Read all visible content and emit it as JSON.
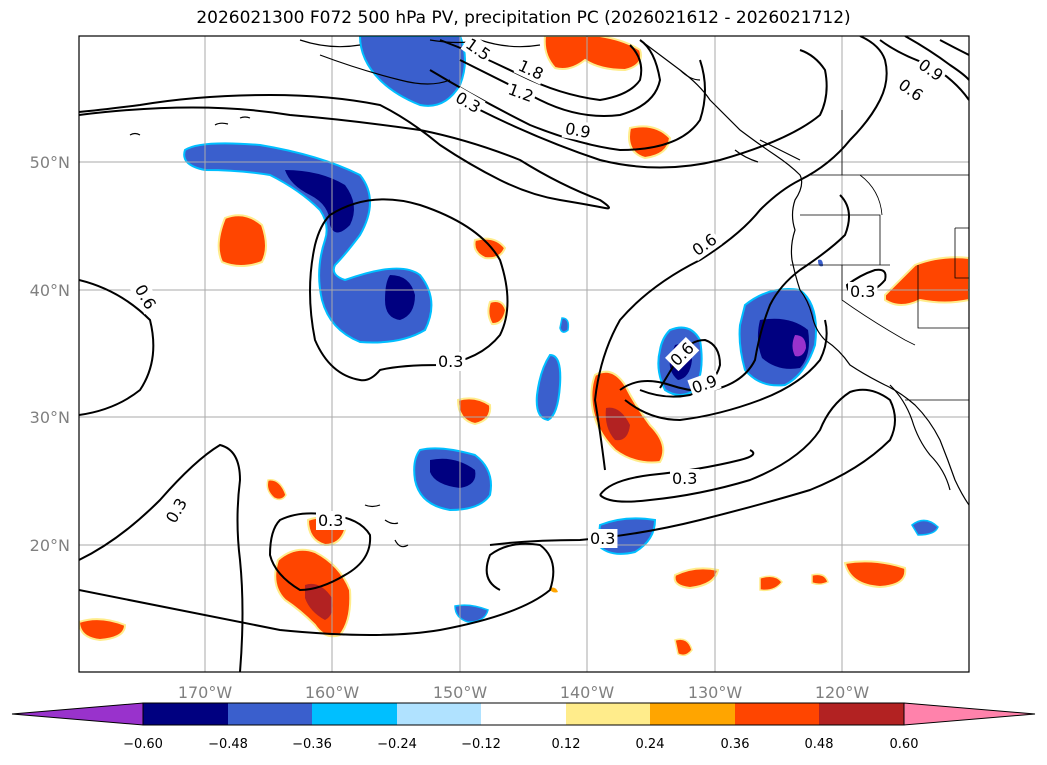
{
  "title": "2026021300 F072 500 hPa PV, precipitation PC (2026021612 - 2026021712)",
  "map": {
    "lon_ticks": [
      "170°W",
      "160°W",
      "150°W",
      "140°W",
      "130°W",
      "120°W"
    ],
    "lat_ticks": [
      "50°N",
      "40°N",
      "30°N",
      "20°N"
    ],
    "contour_labels": [
      "1.5",
      "1.8",
      "1.2",
      "0.3",
      "0.9",
      "0.9",
      "0.6",
      "0.6",
      "0.6",
      "0.3",
      "0.3",
      "0.3",
      "0.3",
      "0.3",
      "0.9",
      "0.6",
      "0.3"
    ],
    "grid": true
  },
  "colorbar": {
    "ticks": [
      "−0.60",
      "−0.48",
      "−0.36",
      "−0.24",
      "−0.12",
      "0.12",
      "0.24",
      "0.36",
      "0.48",
      "0.60"
    ],
    "colors": [
      "#9932cc",
      "#000080",
      "#3a5fcd",
      "#00bfff",
      "#b0e2ff",
      "#ffffff",
      "#ffec8b",
      "#ffa500",
      "#ff4500",
      "#b22222",
      "#ff82ab"
    ]
  }
}
